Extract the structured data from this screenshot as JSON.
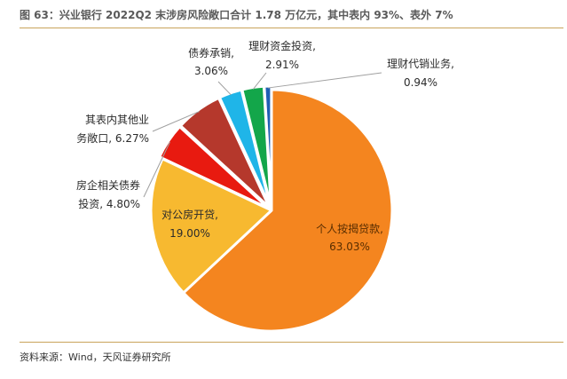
{
  "header": {
    "title": "图 63：兴业银行 2022Q2 末涉房风险敞口合计 1.78 万亿元，其中表内 93%、表外 7%"
  },
  "footer": {
    "source": "资料来源：Wind，天风证券研究所"
  },
  "chart_data": {
    "type": "pie",
    "title": "",
    "slices": [
      {
        "name": "个人按揭贷款",
        "value": 63.03,
        "label": "63.03%",
        "color": "#f4851f"
      },
      {
        "name": "对公房开贷",
        "value": 19.0,
        "label": "19.00%",
        "color": "#f7b930"
      },
      {
        "name": "房企相关债券投资",
        "value": 4.8,
        "label": "4.80%",
        "color": "#e81a10"
      },
      {
        "name": "其表内其他业务敞口",
        "value": 6.27,
        "label": "6.27%",
        "color": "#b5382c"
      },
      {
        "name": "债券承销",
        "value": 3.06,
        "label": "3.06%",
        "color": "#1fb5e8"
      },
      {
        "name": "理财资金投资",
        "value": 2.91,
        "label": "2.91%",
        "color": "#13a64a"
      },
      {
        "name": "理财代销业务",
        "value": 0.94,
        "label": "0.94%",
        "color": "#1e5fb4"
      }
    ],
    "labels": {
      "s0_line1": "个人按揭贷款,",
      "s0_line2": "63.03%",
      "s1_line1": "对公房开贷,",
      "s1_line2": "19.00%",
      "s2_line1": "房企相关债券",
      "s2_line2": "投资, 4.80%",
      "s3_line1": "其表内其他业",
      "s3_line2": "务敞口, 6.27%",
      "s4_line1": "债券承销,",
      "s4_line2": "3.06%",
      "s5_line1": "理财资金投资,",
      "s5_line2": "2.91%",
      "s6_line1": "理财代销业务,",
      "s6_line2": "0.94%"
    }
  }
}
